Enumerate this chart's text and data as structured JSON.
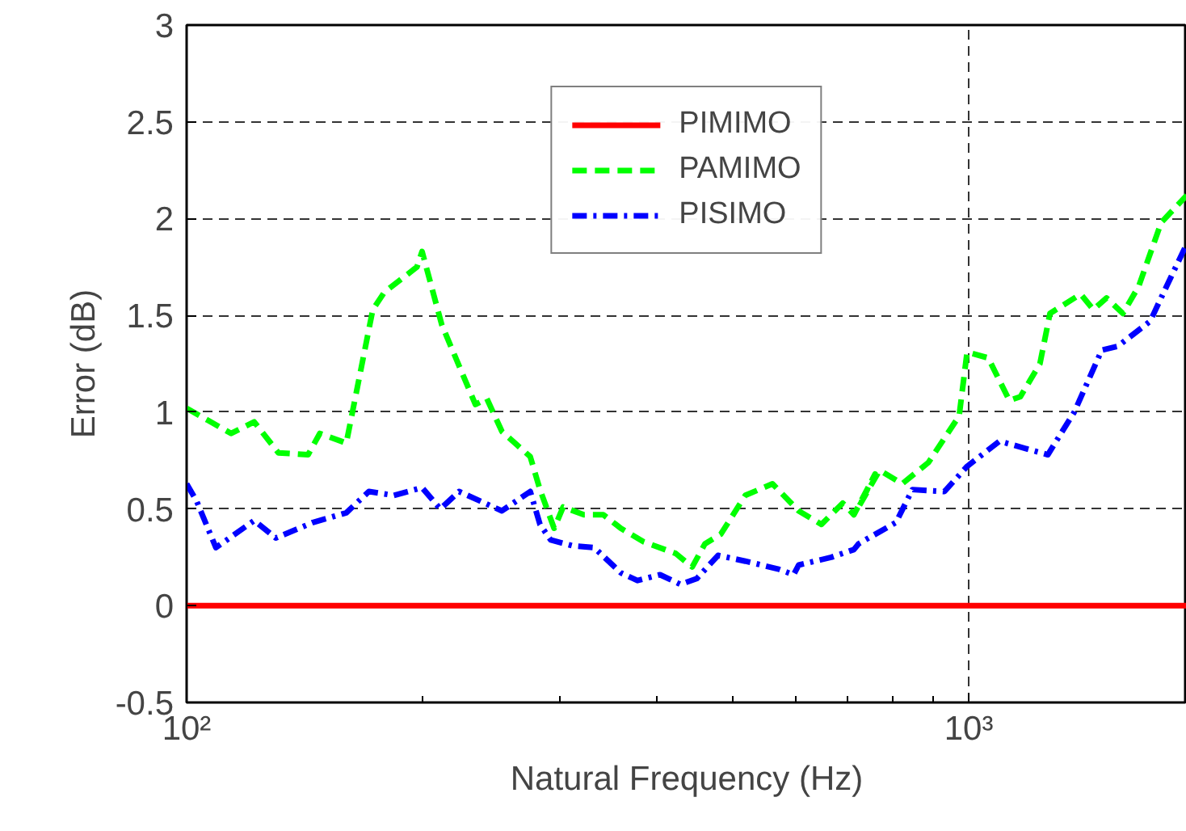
{
  "chart_data": {
    "type": "line",
    "xlabel": "Natural Frequency (Hz)",
    "ylabel": "Error (dB)",
    "log": "x",
    "grid": true,
    "legend": "top",
    "marker": "none",
    "xlim": [
      100,
      1900
    ],
    "ylim": [
      -0.5,
      3
    ],
    "xticks": [
      {
        "value": 100,
        "label": "10²"
      },
      {
        "value": 200,
        "label": null
      },
      {
        "value": 300,
        "label": null
      },
      {
        "value": 400,
        "label": null
      },
      {
        "value": 500,
        "label": null
      },
      {
        "value": 600,
        "label": null
      },
      {
        "value": 700,
        "label": null
      },
      {
        "value": 800,
        "label": null
      },
      {
        "value": 900,
        "label": null
      },
      {
        "value": 1000,
        "label": "10³"
      }
    ],
    "yticks": [
      -0.5,
      0,
      0.5,
      1,
      1.5,
      2,
      2.5,
      3
    ],
    "series": [
      {
        "name": "PIMIMO",
        "color": "#ff0000",
        "line_style": "solid",
        "x": [
          100,
          1900
        ],
        "values": [
          0,
          0
        ]
      },
      {
        "name": "PAMIMO",
        "color": "#00ff00",
        "line_style": "dashed",
        "x": [
          100,
          114,
          122,
          131,
          143,
          148,
          160,
          173,
          179,
          197,
          200,
          212,
          234,
          242,
          253,
          275,
          283,
          295,
          303,
          322,
          341,
          359,
          384,
          422,
          443,
          460,
          482,
          518,
          561,
          606,
          648,
          690,
          713,
          759,
          723,
          769,
          822,
          888,
          972,
          995,
          1059,
          1127,
          1164,
          1233,
          1270,
          1390,
          1443,
          1500,
          1574,
          1649,
          1762,
          1900
        ],
        "values": [
          1.02,
          0.89,
          0.95,
          0.79,
          0.78,
          0.89,
          0.84,
          1.53,
          1.62,
          1.75,
          1.83,
          1.45,
          1.04,
          1.07,
          0.9,
          0.77,
          0.6,
          0.4,
          0.51,
          0.47,
          0.47,
          0.4,
          0.33,
          0.27,
          0.2,
          0.32,
          0.37,
          0.57,
          0.63,
          0.49,
          0.42,
          0.53,
          0.47,
          0.68,
          0.51,
          0.7,
          0.63,
          0.74,
          0.98,
          1.31,
          1.28,
          1.06,
          1.08,
          1.25,
          1.51,
          1.61,
          1.53,
          1.59,
          1.51,
          1.65,
          1.98,
          2.12
        ]
      },
      {
        "name": "PISIMO",
        "color": "#0000ff",
        "line_style": "dashdot",
        "x": [
          100,
          103,
          109,
          122,
          130,
          145,
          160,
          171,
          184,
          200,
          211,
          223,
          253,
          275,
          283,
          292,
          311,
          332,
          359,
          377,
          403,
          428,
          449,
          478,
          518,
          570,
          597,
          606,
          667,
          713,
          723,
          807,
          847,
          931,
          995,
          1095,
          1262,
          1364,
          1479,
          1550,
          1706,
          1790,
          1900
        ],
        "values": [
          0.63,
          0.54,
          0.3,
          0.44,
          0.35,
          0.43,
          0.48,
          0.59,
          0.57,
          0.61,
          0.5,
          0.59,
          0.49,
          0.59,
          0.42,
          0.34,
          0.31,
          0.3,
          0.17,
          0.13,
          0.16,
          0.11,
          0.14,
          0.26,
          0.23,
          0.19,
          0.16,
          0.21,
          0.25,
          0.29,
          0.32,
          0.43,
          0.6,
          0.59,
          0.72,
          0.85,
          0.78,
          1.0,
          1.32,
          1.34,
          1.47,
          1.65,
          1.87
        ]
      }
    ]
  }
}
